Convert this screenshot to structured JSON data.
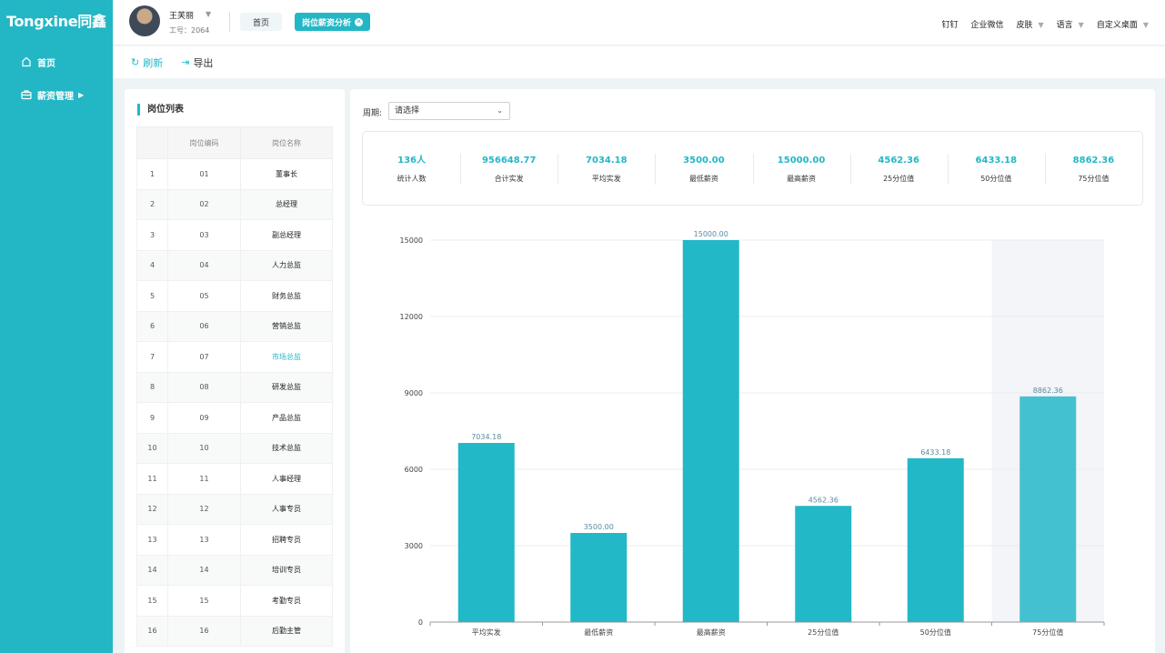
{
  "brand": {
    "logo_text": "Tongxine同鑫"
  },
  "sidebar": {
    "items": [
      {
        "label": "首页",
        "icon": "home-icon"
      },
      {
        "label": "薪资管理",
        "icon": "briefcase-icon"
      }
    ]
  },
  "header": {
    "user_name": "王芙丽",
    "user_id": "工号：2064",
    "tabs": [
      {
        "label": "首页"
      },
      {
        "label": "岗位薪资分析"
      }
    ],
    "right_menu": [
      {
        "label": "钉钉"
      },
      {
        "label": "企业微信"
      },
      {
        "label": "皮肤"
      },
      {
        "label": "语言"
      },
      {
        "label": "自定义桌面"
      }
    ]
  },
  "toolbar": {
    "refresh_label": "刷新",
    "export_label": "导出"
  },
  "position_list": {
    "title": "岗位列表",
    "columns": [
      "",
      "岗位编码",
      "岗位名称"
    ],
    "rows": [
      {
        "no": "1",
        "code": "01",
        "name": "董事长"
      },
      {
        "no": "2",
        "code": "02",
        "name": "总经理"
      },
      {
        "no": "3",
        "code": "03",
        "name": "副总经理"
      },
      {
        "no": "4",
        "code": "04",
        "name": "人力总监"
      },
      {
        "no": "5",
        "code": "05",
        "name": "财务总监"
      },
      {
        "no": "6",
        "code": "06",
        "name": "营销总监"
      },
      {
        "no": "7",
        "code": "07",
        "name": "市场总监"
      },
      {
        "no": "8",
        "code": "08",
        "name": "研发总监"
      },
      {
        "no": "9",
        "code": "09",
        "name": "产品总监"
      },
      {
        "no": "10",
        "code": "10",
        "name": "技术总监"
      },
      {
        "no": "11",
        "code": "11",
        "name": "人事经理"
      },
      {
        "no": "12",
        "code": "12",
        "name": "人事专员"
      },
      {
        "no": "13",
        "code": "13",
        "name": "招聘专员"
      },
      {
        "no": "14",
        "code": "14",
        "name": "培训专员"
      },
      {
        "no": "15",
        "code": "15",
        "name": "考勤专员"
      },
      {
        "no": "16",
        "code": "16",
        "name": "后勤主管"
      }
    ],
    "selected_row": 7
  },
  "filter": {
    "period_label": "周期:",
    "period_value": "请选择"
  },
  "stats": [
    {
      "value": "136人",
      "label": "统计人数"
    },
    {
      "value": "956648.77",
      "label": "合计实发"
    },
    {
      "value": "7034.18",
      "label": "平均实发"
    },
    {
      "value": "3500.00",
      "label": "最低薪资"
    },
    {
      "value": "15000.00",
      "label": "最高薪资"
    },
    {
      "value": "4562.36",
      "label": "25分位值"
    },
    {
      "value": "6433.18",
      "label": "50分位值"
    },
    {
      "value": "8862.36",
      "label": "75分位值"
    }
  ],
  "colors": {
    "accent": "#23b7c6",
    "bar": "#22b8c7",
    "bar_highlight": "#43c1d0"
  },
  "chart_data": {
    "type": "bar",
    "categories": [
      "平均实发",
      "最低薪资",
      "最高薪资",
      "25分位值",
      "50分位值",
      "75分位值"
    ],
    "values": [
      7034.18,
      3500.0,
      15000.0,
      4562.36,
      6433.18,
      8862.36
    ],
    "data_labels": [
      "7034.18",
      "3500.00",
      "15000.00",
      "4562.36",
      "6433.18",
      "8862.36"
    ],
    "ylim": [
      0,
      15000
    ],
    "yticks": [
      0,
      3000,
      6000,
      9000,
      12000,
      15000
    ],
    "grid": true,
    "highlighted_index": 5
  }
}
